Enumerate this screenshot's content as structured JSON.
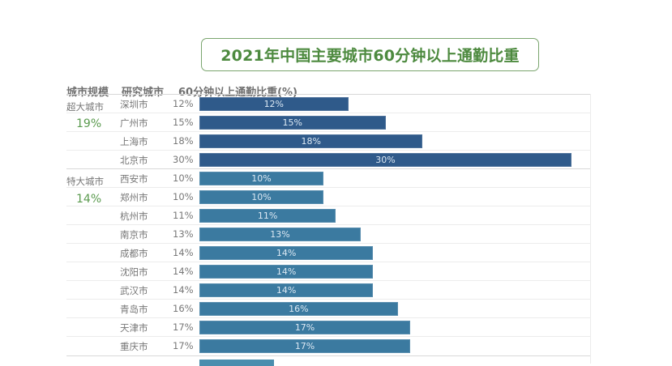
{
  "title": "2021年中国主要城市60分钟以上通勤比重",
  "headers": {
    "scale": "城市规模",
    "city": "研究城市",
    "value": "60分钟以上通勤比重(%)"
  },
  "colors": {
    "title_green": "#4d8a3f",
    "avg_green": "#5a9a4e",
    "super_city_bar": "#2f5a8a",
    "mega_city_bar": "#3b7aa0",
    "text_gray": "#777777"
  },
  "groups": [
    {
      "label": "超大城市",
      "avg": "19%"
    },
    {
      "label": "特大城市",
      "avg": "14%"
    }
  ],
  "rows": [
    {
      "city": "深圳市",
      "pct": "12%",
      "bar_label": "12%",
      "value": 12,
      "group": 0
    },
    {
      "city": "广州市",
      "pct": "15%",
      "bar_label": "15%",
      "value": 15,
      "group": 0
    },
    {
      "city": "上海市",
      "pct": "18%",
      "bar_label": "18%",
      "value": 18,
      "group": 0
    },
    {
      "city": "北京市",
      "pct": "30%",
      "bar_label": "30%",
      "value": 30,
      "group": 0
    },
    {
      "city": "西安市",
      "pct": "10%",
      "bar_label": "10%",
      "value": 10,
      "group": 1
    },
    {
      "city": "郑州市",
      "pct": "10%",
      "bar_label": "10%",
      "value": 10,
      "group": 1
    },
    {
      "city": "杭州市",
      "pct": "11%",
      "bar_label": "11%",
      "value": 11,
      "group": 1
    },
    {
      "city": "南京市",
      "pct": "13%",
      "bar_label": "13%",
      "value": 13,
      "group": 1
    },
    {
      "city": "成都市",
      "pct": "14%",
      "bar_label": "14%",
      "value": 14,
      "group": 1
    },
    {
      "city": "沈阳市",
      "pct": "14%",
      "bar_label": "14%",
      "value": 14,
      "group": 1
    },
    {
      "city": "武汉市",
      "pct": "14%",
      "bar_label": "14%",
      "value": 14,
      "group": 1
    },
    {
      "city": "青岛市",
      "pct": "16%",
      "bar_label": "16%",
      "value": 16,
      "group": 1
    },
    {
      "city": "天津市",
      "pct": "17%",
      "bar_label": "17%",
      "value": 17,
      "group": 1
    },
    {
      "city": "重庆市",
      "pct": "17%",
      "bar_label": "17%",
      "value": 17,
      "group": 1
    }
  ],
  "chart_data": {
    "type": "bar",
    "orientation": "horizontal",
    "title": "2021年中国主要城市60分钟以上通勤比重",
    "xlabel": "60分钟以上通勤比重(%)",
    "ylabel": "研究城市",
    "categories": [
      "深圳市",
      "广州市",
      "上海市",
      "北京市",
      "西安市",
      "郑州市",
      "杭州市",
      "南京市",
      "成都市",
      "沈阳市",
      "武汉市",
      "青岛市",
      "天津市",
      "重庆市"
    ],
    "values": [
      12,
      15,
      18,
      30,
      10,
      10,
      11,
      13,
      14,
      14,
      14,
      16,
      17,
      17
    ],
    "groups": [
      {
        "name": "超大城市",
        "average": 19,
        "members": [
          "深圳市",
          "广州市",
          "上海市",
          "北京市"
        ]
      },
      {
        "name": "特大城市",
        "average": 14,
        "members": [
          "西安市",
          "郑州市",
          "杭州市",
          "南京市",
          "成都市",
          "沈阳市",
          "武汉市",
          "青岛市",
          "天津市",
          "重庆市"
        ]
      }
    ],
    "unit": "%",
    "data_labels": true,
    "grid": false,
    "xlim": [
      0,
      30
    ]
  }
}
